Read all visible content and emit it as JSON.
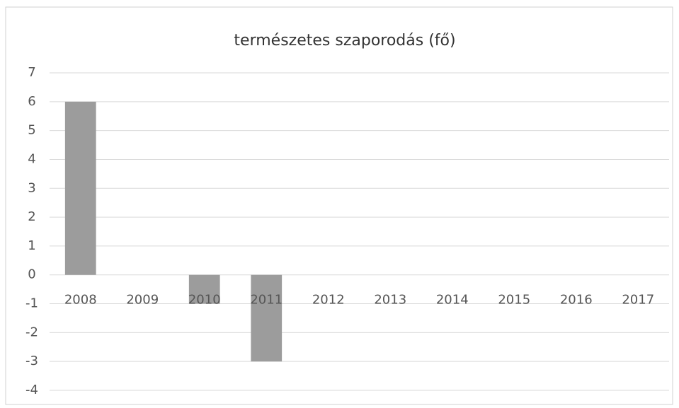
{
  "chart_data": {
    "type": "bar",
    "title": "természetes szaporodás (fő)",
    "categories": [
      "2008",
      "2009",
      "2010",
      "2011",
      "2012",
      "2013",
      "2014",
      "2015",
      "2016",
      "2017"
    ],
    "values": [
      6,
      0,
      -1,
      -3,
      0,
      0,
      0,
      0,
      0,
      0
    ],
    "color": "#9c9c9c",
    "ylim": [
      -4,
      7
    ],
    "yticks": [
      -4,
      -3,
      -2,
      -1,
      0,
      1,
      2,
      3,
      4,
      5,
      6,
      7
    ],
    "grid": true
  }
}
